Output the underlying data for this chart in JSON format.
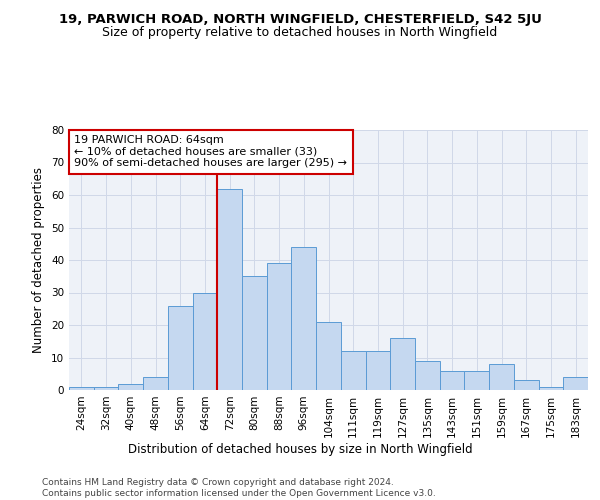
{
  "title": "19, PARWICH ROAD, NORTH WINGFIELD, CHESTERFIELD, S42 5JU",
  "subtitle": "Size of property relative to detached houses in North Wingfield",
  "xlabel": "Distribution of detached houses by size in North Wingfield",
  "ylabel": "Number of detached properties",
  "categories": [
    "24sqm",
    "32sqm",
    "40sqm",
    "48sqm",
    "56sqm",
    "64sqm",
    "72sqm",
    "80sqm",
    "88sqm",
    "96sqm",
    "104sqm",
    "111sqm",
    "119sqm",
    "127sqm",
    "135sqm",
    "143sqm",
    "151sqm",
    "159sqm",
    "167sqm",
    "175sqm",
    "183sqm"
  ],
  "values": [
    1,
    1,
    2,
    4,
    26,
    30,
    62,
    35,
    39,
    44,
    21,
    12,
    12,
    16,
    9,
    6,
    6,
    8,
    3,
    1,
    4
  ],
  "bar_color": "#c5d8f0",
  "bar_edge_color": "#5b9bd5",
  "vline_index": 5,
  "vline_color": "#cc0000",
  "annotation_text": "19 PARWICH ROAD: 64sqm\n← 10% of detached houses are smaller (33)\n90% of semi-detached houses are larger (295) →",
  "annotation_box_color": "#ffffff",
  "annotation_box_edge": "#cc0000",
  "ylim": [
    0,
    80
  ],
  "yticks": [
    0,
    10,
    20,
    30,
    40,
    50,
    60,
    70,
    80
  ],
  "grid_color": "#d0d8e8",
  "background_color": "#eef2f8",
  "footer_text": "Contains HM Land Registry data © Crown copyright and database right 2024.\nContains public sector information licensed under the Open Government Licence v3.0.",
  "title_fontsize": 9.5,
  "subtitle_fontsize": 9,
  "xlabel_fontsize": 8.5,
  "ylabel_fontsize": 8.5,
  "tick_fontsize": 7.5,
  "annotation_fontsize": 8,
  "footer_fontsize": 6.5
}
